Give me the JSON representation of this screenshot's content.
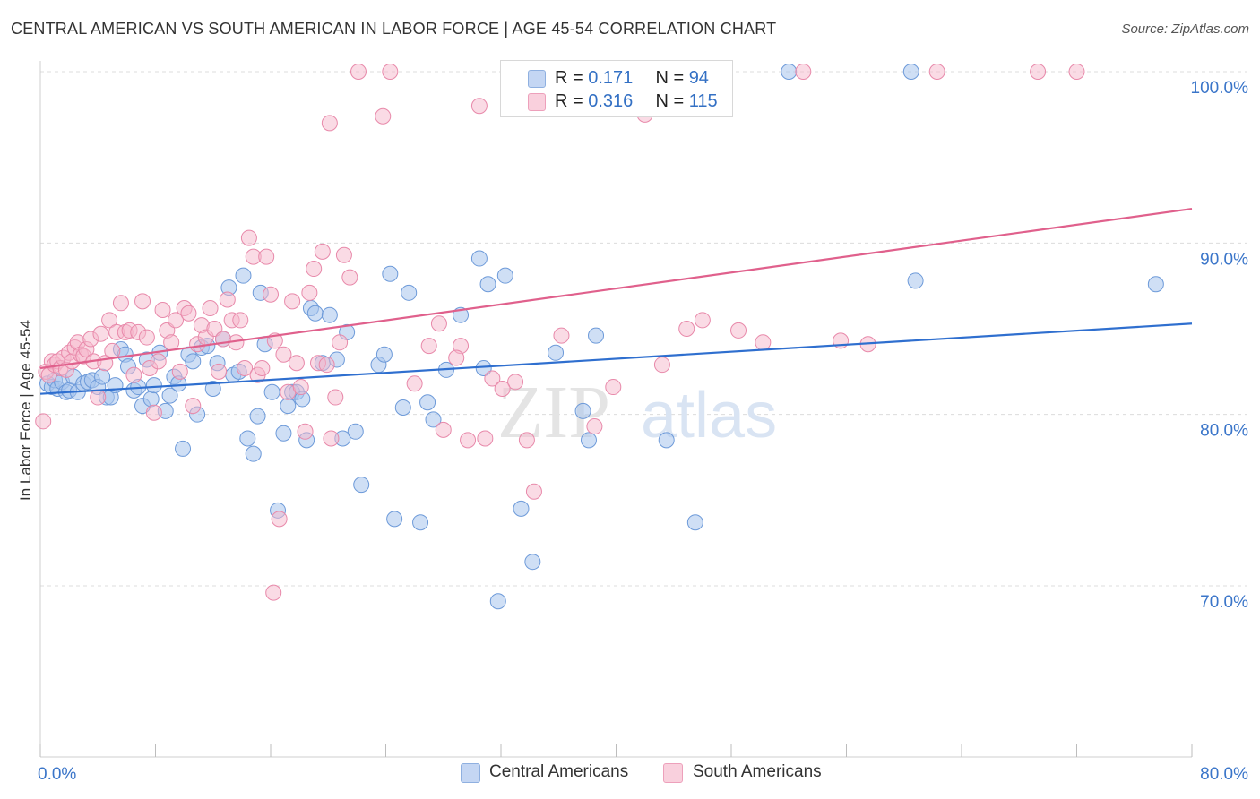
{
  "header": {
    "title": "CENTRAL AMERICAN VS SOUTH AMERICAN IN LABOR FORCE | AGE 45-54 CORRELATION CHART",
    "source": "Source: ZipAtlas.com"
  },
  "legend": {
    "rows": [
      {
        "r_label": "R = ",
        "r_value": "0.171",
        "n_label": "N = ",
        "n_value": "94",
        "color": "#a8c4ec"
      },
      {
        "r_label": "R = ",
        "r_value": "0.316",
        "n_label": "N = ",
        "n_value": "115",
        "color": "#f5b8cc"
      }
    ],
    "bottom": [
      {
        "label": "Central Americans",
        "color": "#a8c4ec"
      },
      {
        "label": "South Americans",
        "color": "#f5b8cc"
      }
    ]
  },
  "watermark": {
    "zip": "ZIP",
    "atlas": "atlas"
  },
  "chart_data": {
    "type": "scatter",
    "ylabel": "In Labor Force | Age 45-54",
    "xlim": [
      0,
      80
    ],
    "ylim": [
      60,
      102
    ],
    "x_tick_labels": [
      {
        "value": 0,
        "label": "0.0%"
      },
      {
        "value": 80,
        "label": "80.0%"
      }
    ],
    "y_tick_labels": [
      {
        "value": 100,
        "label": "100.0%"
      },
      {
        "value": 90,
        "label": "90.0%"
      },
      {
        "value": 80,
        "label": "80.0%"
      },
      {
        "value": 70,
        "label": "70.0%"
      }
    ],
    "series": [
      {
        "name": "Central Americans",
        "color": "#a8c4ec",
        "line_color": "#2f6fcf",
        "trend": [
          [
            0,
            81.2
          ],
          [
            80,
            85.3
          ]
        ],
        "points": [
          [
            0.5,
            81.8
          ],
          [
            0.8,
            81.6
          ],
          [
            1.0,
            82.0
          ],
          [
            1.2,
            81.5
          ],
          [
            1.5,
            81.9
          ],
          [
            1.8,
            81.3
          ],
          [
            2.0,
            81.4
          ],
          [
            2.3,
            82.2
          ],
          [
            2.6,
            81.3
          ],
          [
            3.0,
            81.8
          ],
          [
            3.3,
            81.9
          ],
          [
            3.6,
            82.0
          ],
          [
            4.0,
            81.6
          ],
          [
            4.3,
            82.2
          ],
          [
            4.6,
            81.0
          ],
          [
            4.9,
            81.0
          ],
          [
            5.2,
            81.7
          ],
          [
            5.6,
            83.8
          ],
          [
            5.9,
            83.5
          ],
          [
            6.1,
            82.8
          ],
          [
            6.5,
            81.4
          ],
          [
            6.8,
            81.6
          ],
          [
            7.1,
            80.5
          ],
          [
            7.4,
            83.2
          ],
          [
            7.7,
            80.9
          ],
          [
            7.9,
            81.7
          ],
          [
            8.3,
            83.6
          ],
          [
            8.7,
            80.2
          ],
          [
            9.0,
            81.1
          ],
          [
            9.3,
            82.2
          ],
          [
            9.6,
            81.8
          ],
          [
            9.9,
            78.0
          ],
          [
            10.3,
            83.5
          ],
          [
            10.6,
            83.1
          ],
          [
            10.9,
            80.0
          ],
          [
            11.2,
            83.9
          ],
          [
            11.6,
            84.0
          ],
          [
            12.0,
            81.5
          ],
          [
            12.3,
            83.0
          ],
          [
            12.7,
            84.4
          ],
          [
            13.1,
            87.4
          ],
          [
            13.4,
            82.3
          ],
          [
            13.8,
            82.5
          ],
          [
            14.1,
            88.1
          ],
          [
            14.4,
            78.6
          ],
          [
            14.8,
            77.7
          ],
          [
            15.1,
            79.9
          ],
          [
            15.3,
            87.1
          ],
          [
            15.6,
            84.1
          ],
          [
            16.1,
            81.3
          ],
          [
            16.5,
            74.4
          ],
          [
            16.9,
            78.9
          ],
          [
            17.2,
            80.5
          ],
          [
            17.5,
            81.3
          ],
          [
            17.8,
            81.3
          ],
          [
            18.2,
            80.9
          ],
          [
            18.5,
            78.5
          ],
          [
            18.8,
            86.2
          ],
          [
            19.1,
            85.9
          ],
          [
            19.6,
            83.0
          ],
          [
            20.1,
            85.8
          ],
          [
            20.6,
            83.2
          ],
          [
            21.0,
            78.6
          ],
          [
            21.3,
            84.8
          ],
          [
            21.9,
            79.0
          ],
          [
            22.3,
            75.9
          ],
          [
            23.5,
            82.9
          ],
          [
            23.9,
            83.5
          ],
          [
            24.3,
            88.2
          ],
          [
            24.6,
            73.9
          ],
          [
            25.2,
            80.4
          ],
          [
            25.6,
            87.1
          ],
          [
            26.4,
            73.7
          ],
          [
            26.9,
            80.7
          ],
          [
            27.3,
            79.7
          ],
          [
            28.2,
            82.6
          ],
          [
            29.2,
            85.8
          ],
          [
            30.5,
            89.1
          ],
          [
            30.8,
            82.7
          ],
          [
            31.1,
            87.6
          ],
          [
            31.8,
            69.1
          ],
          [
            32.3,
            88.1
          ],
          [
            33.4,
            74.5
          ],
          [
            34.2,
            71.4
          ],
          [
            35.8,
            83.6
          ],
          [
            37.7,
            80.2
          ],
          [
            38.1,
            78.5
          ],
          [
            38.6,
            84.6
          ],
          [
            43.5,
            78.5
          ],
          [
            45.5,
            73.7
          ],
          [
            52.0,
            100.0
          ],
          [
            60.5,
            100.0
          ],
          [
            60.8,
            87.8
          ],
          [
            77.5,
            87.6
          ]
        ]
      },
      {
        "name": "South Americans",
        "color": "#f5b8cc",
        "line_color": "#e0608c",
        "trend": [
          [
            0,
            82.7
          ],
          [
            80,
            92.0
          ]
        ],
        "points": [
          [
            0.2,
            79.6
          ],
          [
            0.4,
            82.5
          ],
          [
            0.6,
            82.3
          ],
          [
            0.8,
            83.1
          ],
          [
            1.0,
            82.9
          ],
          [
            1.2,
            83.1
          ],
          [
            1.4,
            82.7
          ],
          [
            1.6,
            83.3
          ],
          [
            1.8,
            82.6
          ],
          [
            2.0,
            83.6
          ],
          [
            2.2,
            83.1
          ],
          [
            2.4,
            83.9
          ],
          [
            2.6,
            84.2
          ],
          [
            2.8,
            83.5
          ],
          [
            3.0,
            83.4
          ],
          [
            3.2,
            83.8
          ],
          [
            3.5,
            84.4
          ],
          [
            3.7,
            83.1
          ],
          [
            4.0,
            81.0
          ],
          [
            4.2,
            84.7
          ],
          [
            4.5,
            83.0
          ],
          [
            4.8,
            85.5
          ],
          [
            5.0,
            83.7
          ],
          [
            5.3,
            84.8
          ],
          [
            5.6,
            86.5
          ],
          [
            5.9,
            84.8
          ],
          [
            6.2,
            84.9
          ],
          [
            6.5,
            82.3
          ],
          [
            6.8,
            84.8
          ],
          [
            7.1,
            86.6
          ],
          [
            7.4,
            84.5
          ],
          [
            7.6,
            82.7
          ],
          [
            7.9,
            80.1
          ],
          [
            8.2,
            83.1
          ],
          [
            8.5,
            86.1
          ],
          [
            8.8,
            84.9
          ],
          [
            9.1,
            84.2
          ],
          [
            9.4,
            85.5
          ],
          [
            9.7,
            82.5
          ],
          [
            10.0,
            86.2
          ],
          [
            10.3,
            85.9
          ],
          [
            10.6,
            80.5
          ],
          [
            10.9,
            84.1
          ],
          [
            11.2,
            85.2
          ],
          [
            11.5,
            84.5
          ],
          [
            11.8,
            86.2
          ],
          [
            12.1,
            85.0
          ],
          [
            12.4,
            82.5
          ],
          [
            12.7,
            84.4
          ],
          [
            13.0,
            86.7
          ],
          [
            13.3,
            85.5
          ],
          [
            13.6,
            84.2
          ],
          [
            13.9,
            85.5
          ],
          [
            14.2,
            82.7
          ],
          [
            14.5,
            90.3
          ],
          [
            14.8,
            89.2
          ],
          [
            15.1,
            82.3
          ],
          [
            15.4,
            82.7
          ],
          [
            15.7,
            89.2
          ],
          [
            16.0,
            87.0
          ],
          [
            16.3,
            84.3
          ],
          [
            16.6,
            73.9
          ],
          [
            16.9,
            83.5
          ],
          [
            17.2,
            81.3
          ],
          [
            17.5,
            86.6
          ],
          [
            17.8,
            83.0
          ],
          [
            18.1,
            81.6
          ],
          [
            18.4,
            79.0
          ],
          [
            18.7,
            87.1
          ],
          [
            19.0,
            88.5
          ],
          [
            19.3,
            83.0
          ],
          [
            19.6,
            89.5
          ],
          [
            19.9,
            82.9
          ],
          [
            20.2,
            78.6
          ],
          [
            20.5,
            81.0
          ],
          [
            20.8,
            84.2
          ],
          [
            21.1,
            89.3
          ],
          [
            21.5,
            88.0
          ],
          [
            24.3,
            100.0
          ],
          [
            27.0,
            84.0
          ],
          [
            28.0,
            79.1
          ],
          [
            29.2,
            84.0
          ],
          [
            29.7,
            78.5
          ],
          [
            30.5,
            98.0
          ],
          [
            33.0,
            81.9
          ],
          [
            34.3,
            75.5
          ],
          [
            35.0,
            100.0
          ],
          [
            37.6,
            100.0
          ],
          [
            41.9,
            100.0
          ],
          [
            42.0,
            97.5
          ],
          [
            46.0,
            85.5
          ],
          [
            53.0,
            100.0
          ],
          [
            57.5,
            84.1
          ],
          [
            62.3,
            100.0
          ],
          [
            69.3,
            100.0
          ],
          [
            72.0,
            100.0
          ],
          [
            16.2,
            69.6
          ],
          [
            20.1,
            97.0
          ],
          [
            22.1,
            100.0
          ],
          [
            23.8,
            97.4
          ],
          [
            26.0,
            81.8
          ],
          [
            27.7,
            85.3
          ],
          [
            28.9,
            83.3
          ],
          [
            30.9,
            78.6
          ],
          [
            31.4,
            82.1
          ],
          [
            32.1,
            81.5
          ],
          [
            33.8,
            78.5
          ],
          [
            36.2,
            84.6
          ],
          [
            38.5,
            79.3
          ],
          [
            39.8,
            81.6
          ],
          [
            43.2,
            82.9
          ],
          [
            44.9,
            85.0
          ],
          [
            48.5,
            84.9
          ],
          [
            50.2,
            84.2
          ],
          [
            55.6,
            84.3
          ]
        ]
      }
    ]
  }
}
